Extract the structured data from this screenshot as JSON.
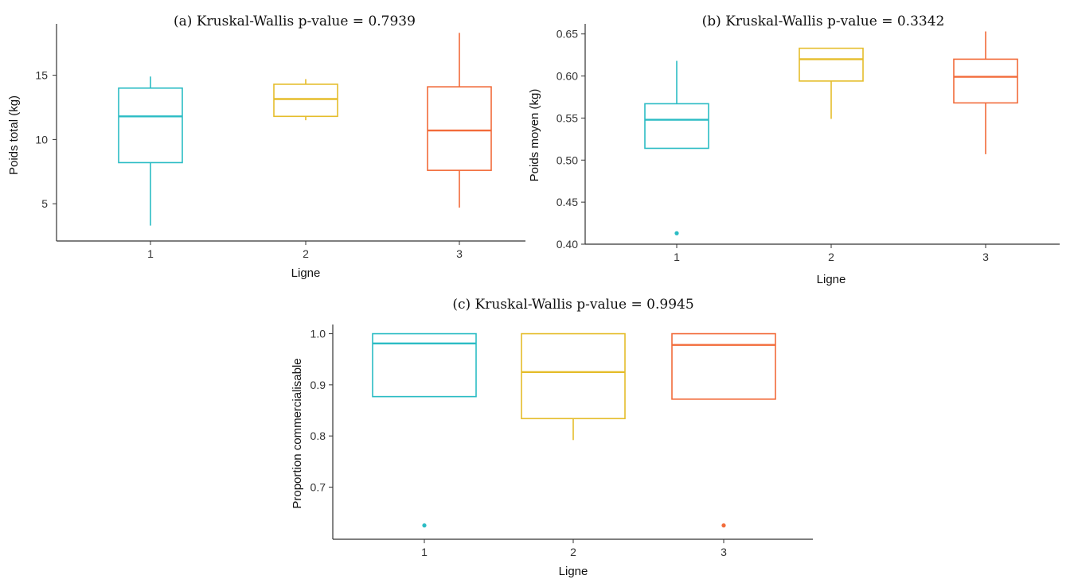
{
  "chart_data": [
    {
      "type": "boxplot",
      "title": "(a) Kruskal-Wallis p-value = 0.7939",
      "xlabel": "Ligne",
      "ylabel": "Poids total (kg)",
      "categories": [
        "1",
        "2",
        "3"
      ],
      "yticks": [
        5,
        10,
        15
      ],
      "ylim": [
        2.1,
        19.0
      ],
      "grid": false,
      "colors": [
        "#2bbcc4",
        "#e5bd2b",
        "#f26b3a"
      ],
      "boxes": [
        {
          "q1": 8.2,
          "median": 11.8,
          "q3": 14.0,
          "whisker_low": 3.3,
          "whisker_high": 14.9,
          "outliers": []
        },
        {
          "q1": 11.8,
          "median": 13.15,
          "q3": 14.3,
          "whisker_low": 11.5,
          "whisker_high": 14.7,
          "outliers": []
        },
        {
          "q1": 7.6,
          "median": 10.7,
          "q3": 14.1,
          "whisker_low": 4.7,
          "whisker_high": 18.3,
          "outliers": []
        }
      ]
    },
    {
      "type": "boxplot",
      "title": "(b) Kruskal-Wallis p-value = 0.3342",
      "xlabel": "Ligne",
      "ylabel": "Poids moyen (kg)",
      "categories": [
        "1",
        "2",
        "3"
      ],
      "yticks": [
        "0.40",
        "0.45",
        "0.50",
        "0.55",
        "0.60",
        "0.65"
      ],
      "ylim": [
        0.4,
        0.662
      ],
      "grid": false,
      "colors": [
        "#2bbcc4",
        "#e5bd2b",
        "#f26b3a"
      ],
      "boxes": [
        {
          "q1": 0.514,
          "median": 0.548,
          "q3": 0.567,
          "whisker_low": 0.514,
          "whisker_high": 0.618,
          "outliers": [
            0.413
          ]
        },
        {
          "q1": 0.594,
          "median": 0.62,
          "q3": 0.633,
          "whisker_low": 0.549,
          "whisker_high": 0.633,
          "outliers": []
        },
        {
          "q1": 0.568,
          "median": 0.599,
          "q3": 0.62,
          "whisker_low": 0.507,
          "whisker_high": 0.653,
          "outliers": []
        }
      ]
    },
    {
      "type": "boxplot",
      "title": "(c) Kruskal-Wallis p-value = 0.9945",
      "xlabel": "Ligne",
      "ylabel": "Proportion commercialisable",
      "categories": [
        "1",
        "2",
        "3"
      ],
      "yticks": [
        "0.7",
        "0.8",
        "0.9",
        "1.0"
      ],
      "ylim": [
        0.598,
        1.018
      ],
      "grid": false,
      "colors": [
        "#2bbcc4",
        "#e5bd2b",
        "#f26b3a"
      ],
      "boxes": [
        {
          "q1": 0.877,
          "median": 0.981,
          "q3": 1.0,
          "whisker_low": 0.877,
          "whisker_high": 1.0,
          "outliers": [
            0.625
          ]
        },
        {
          "q1": 0.834,
          "median": 0.925,
          "q3": 1.0,
          "whisker_low": 0.792,
          "whisker_high": 1.0,
          "outliers": []
        },
        {
          "q1": 0.872,
          "median": 0.978,
          "q3": 1.0,
          "whisker_low": 0.872,
          "whisker_high": 1.0,
          "outliers": [
            0.625
          ]
        }
      ]
    }
  ]
}
